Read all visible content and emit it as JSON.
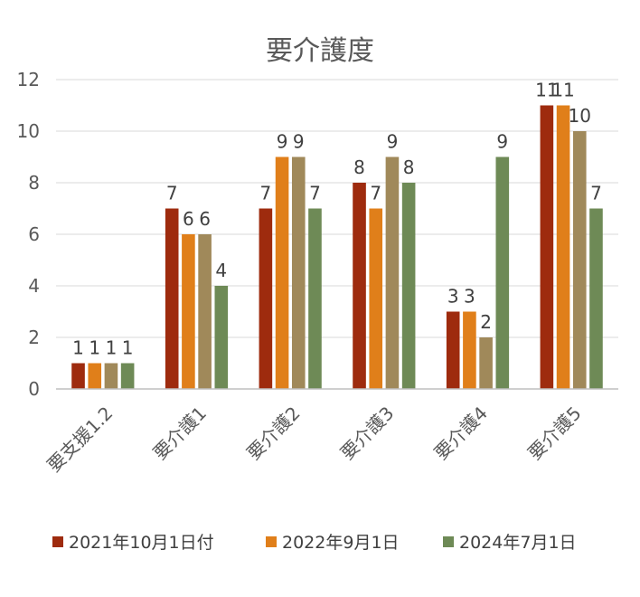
{
  "chart_data": {
    "type": "bar",
    "title": "要介護度",
    "categories": [
      "要支援1.2",
      "要介護1",
      "要介護2",
      "要介護3",
      "要介護4",
      "要介護5"
    ],
    "series": [
      {
        "name": "2021年10月1日付",
        "color": "#9e2b0e",
        "values": [
          1,
          7,
          7,
          8,
          3,
          11
        ]
      },
      {
        "name": "2022年9月1日",
        "color": "#e07f1a",
        "values": [
          1,
          6,
          9,
          7,
          3,
          11
        ]
      },
      {
        "name": "",
        "color": "#a0895a",
        "values": [
          1,
          6,
          9,
          9,
          2,
          10
        ]
      },
      {
        "name": "2024年7月1日",
        "color": "#6e8a56",
        "values": [
          1,
          4,
          7,
          8,
          9,
          7
        ]
      }
    ],
    "ylim": [
      0,
      12
    ],
    "yticks": [
      0,
      2,
      4,
      6,
      8,
      10,
      12
    ],
    "grid": true,
    "legend": "bottom"
  }
}
